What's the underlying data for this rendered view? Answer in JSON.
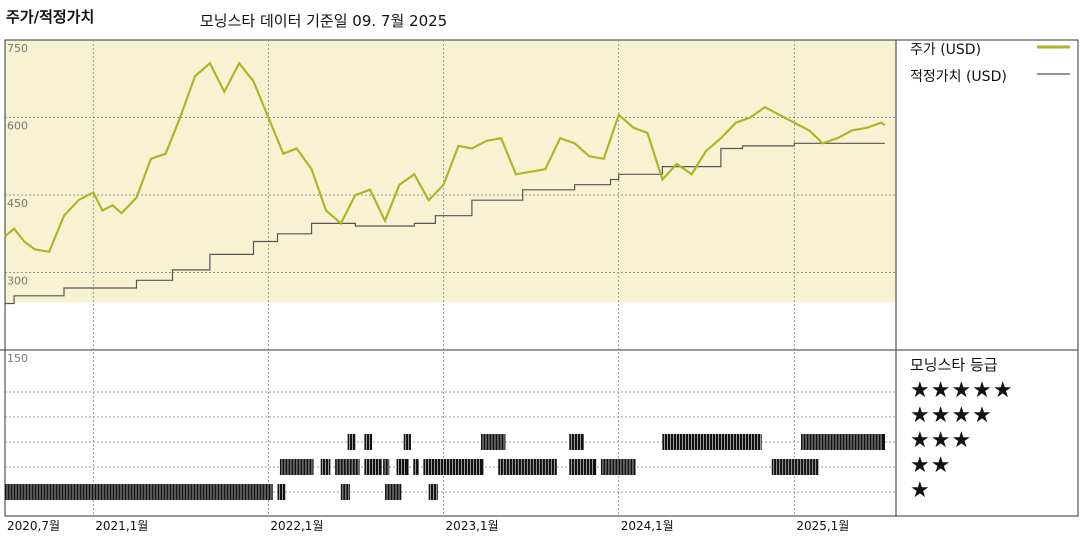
{
  "header": {
    "title": "주가/적정가치",
    "subtitle": "모닝스타 데이터 기준일 09. 7월 2025"
  },
  "legend": {
    "price_label": "주가 (USD)",
    "fair_label": "적정가치 (USD)",
    "price_color": "#b3b32a",
    "fair_color": "#555555"
  },
  "rating_panel": {
    "title": "모닝스타 등급",
    "rows": [
      "★★★★★",
      "★★★★",
      "★★★",
      "★★",
      "★"
    ]
  },
  "chart_data": {
    "type": "line",
    "ylim": [
      150,
      750
    ],
    "y_ticks": [
      "750",
      "600",
      "450",
      "300",
      "150"
    ],
    "y_tick_values": [
      750,
      600,
      450,
      300,
      150
    ],
    "x_range": [
      "2020-07-01",
      "2025-07-09"
    ],
    "x_ticks": [
      {
        "label": "2020,7월",
        "date": "2020-07-01"
      },
      {
        "label": "2021,1월",
        "date": "2021-01-01"
      },
      {
        "label": "2022,1월",
        "date": "2022-01-01"
      },
      {
        "label": "2023,1월",
        "date": "2023-01-01"
      },
      {
        "label": "2024,1월",
        "date": "2024-01-01"
      },
      {
        "label": "2025,1월",
        "date": "2025-01-01"
      }
    ],
    "background_color": "#f7f3d2",
    "series": [
      {
        "name": "주가 (USD)",
        "color": "#b3b32a",
        "points": [
          [
            "2020-07-01",
            370
          ],
          [
            "2020-07-20",
            385
          ],
          [
            "2020-08-10",
            360
          ],
          [
            "2020-09-01",
            345
          ],
          [
            "2020-10-01",
            340
          ],
          [
            "2020-11-01",
            410
          ],
          [
            "2020-12-01",
            440
          ],
          [
            "2021-01-01",
            455
          ],
          [
            "2021-01-20",
            420
          ],
          [
            "2021-02-10",
            430
          ],
          [
            "2021-03-01",
            415
          ],
          [
            "2021-04-01",
            445
          ],
          [
            "2021-05-01",
            520
          ],
          [
            "2021-06-01",
            530
          ],
          [
            "2021-07-01",
            600
          ],
          [
            "2021-08-01",
            680
          ],
          [
            "2021-09-01",
            705
          ],
          [
            "2021-10-01",
            650
          ],
          [
            "2021-11-01",
            705
          ],
          [
            "2021-12-01",
            670
          ],
          [
            "2022-01-01",
            600
          ],
          [
            "2022-02-01",
            530
          ],
          [
            "2022-03-01",
            540
          ],
          [
            "2022-04-01",
            500
          ],
          [
            "2022-05-01",
            420
          ],
          [
            "2022-06-01",
            395
          ],
          [
            "2022-07-01",
            450
          ],
          [
            "2022-08-01",
            460
          ],
          [
            "2022-09-01",
            400
          ],
          [
            "2022-10-01",
            470
          ],
          [
            "2022-11-01",
            490
          ],
          [
            "2022-12-01",
            440
          ],
          [
            "2023-01-01",
            470
          ],
          [
            "2023-02-01",
            545
          ],
          [
            "2023-03-01",
            540
          ],
          [
            "2023-04-01",
            555
          ],
          [
            "2023-05-01",
            560
          ],
          [
            "2023-06-01",
            490
          ],
          [
            "2023-07-01",
            495
          ],
          [
            "2023-08-01",
            500
          ],
          [
            "2023-09-01",
            560
          ],
          [
            "2023-10-01",
            550
          ],
          [
            "2023-11-01",
            525
          ],
          [
            "2023-12-01",
            520
          ],
          [
            "2024-01-01",
            605
          ],
          [
            "2024-02-01",
            580
          ],
          [
            "2024-03-01",
            570
          ],
          [
            "2024-04-01",
            480
          ],
          [
            "2024-05-01",
            510
          ],
          [
            "2024-06-01",
            490
          ],
          [
            "2024-07-01",
            535
          ],
          [
            "2024-08-01",
            560
          ],
          [
            "2024-09-01",
            590
          ],
          [
            "2024-10-01",
            600
          ],
          [
            "2024-11-01",
            620
          ],
          [
            "2024-12-01",
            605
          ],
          [
            "2025-01-01",
            590
          ],
          [
            "2025-02-01",
            575
          ],
          [
            "2025-03-01",
            550
          ],
          [
            "2025-04-01",
            560
          ],
          [
            "2025-05-01",
            575
          ],
          [
            "2025-06-01",
            580
          ],
          [
            "2025-07-01",
            590
          ],
          [
            "2025-07-09",
            585
          ]
        ]
      },
      {
        "name": "적정가치 (USD)",
        "color": "#555555",
        "steps": [
          [
            "2020-07-01",
            240
          ],
          [
            "2020-07-20",
            255
          ],
          [
            "2020-11-01",
            270
          ],
          [
            "2021-04-01",
            285
          ],
          [
            "2021-06-15",
            305
          ],
          [
            "2021-09-01",
            335
          ],
          [
            "2021-12-01",
            360
          ],
          [
            "2022-01-20",
            375
          ],
          [
            "2022-04-01",
            395
          ],
          [
            "2022-07-01",
            390
          ],
          [
            "2022-11-01",
            395
          ],
          [
            "2022-12-15",
            410
          ],
          [
            "2023-03-01",
            440
          ],
          [
            "2023-06-15",
            460
          ],
          [
            "2023-10-01",
            470
          ],
          [
            "2023-12-15",
            480
          ],
          [
            "2024-01-01",
            490
          ],
          [
            "2024-04-01",
            505
          ],
          [
            "2024-08-01",
            540
          ],
          [
            "2024-09-15",
            545
          ],
          [
            "2025-01-01",
            550
          ],
          [
            "2025-07-09",
            550
          ]
        ]
      }
    ],
    "star_rating_history": [
      {
        "stars": 1,
        "segments": [
          [
            "2020-07-01",
            "2022-01-10"
          ],
          [
            "2022-01-20",
            "2022-02-05"
          ],
          [
            "2022-06-01",
            "2022-06-20"
          ],
          [
            "2022-09-01",
            "2022-10-05"
          ],
          [
            "2022-12-01",
            "2022-12-20"
          ]
        ]
      },
      {
        "stars": 2,
        "segments": [
          [
            "2022-01-25",
            "2022-04-05"
          ],
          [
            "2022-04-20",
            "2022-05-10"
          ],
          [
            "2022-05-20",
            "2022-07-10"
          ],
          [
            "2022-07-20",
            "2022-08-25"
          ],
          [
            "2022-08-28",
            "2022-09-10"
          ],
          [
            "2022-09-25",
            "2022-10-20"
          ],
          [
            "2022-10-30",
            "2022-11-10"
          ],
          [
            "2022-11-20",
            "2023-03-25"
          ],
          [
            "2023-04-25",
            "2023-08-25"
          ],
          [
            "2023-09-20",
            "2023-11-15"
          ],
          [
            "2023-11-25",
            "2024-02-05"
          ],
          [
            "2024-11-15",
            "2025-02-20"
          ]
        ]
      },
      {
        "stars": 3,
        "segments": [
          [
            "2022-06-15",
            "2022-07-01"
          ],
          [
            "2022-07-20",
            "2022-08-05"
          ],
          [
            "2022-10-10",
            "2022-10-25"
          ],
          [
            "2023-03-20",
            "2023-05-10"
          ],
          [
            "2023-09-20",
            "2023-10-20"
          ],
          [
            "2024-04-01",
            "2024-10-25"
          ],
          [
            "2025-01-15",
            "2025-07-09"
          ]
        ]
      }
    ]
  }
}
